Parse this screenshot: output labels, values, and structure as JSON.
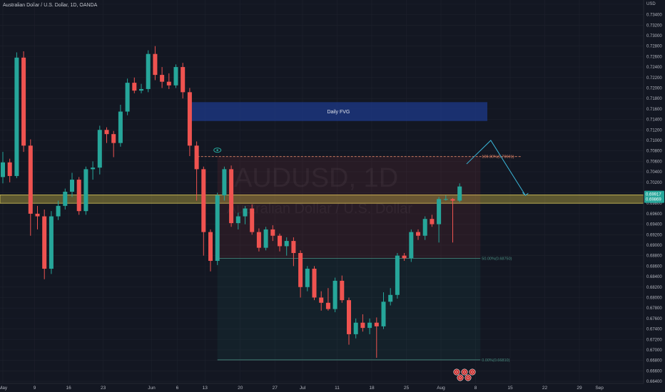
{
  "header": {
    "title": "Australian Dollar / U.S. Dollar, 1D, OANDA"
  },
  "watermark": {
    "symbol": "AUDUSD, 1D",
    "name": "Australian Dollar / U.S. Dollar"
  },
  "chart_data": {
    "type": "candlestick",
    "title": "Australian Dollar / U.S. Dollar, 1D, OANDA",
    "currency_label": "USD",
    "ylim": [
      0.6636,
      0.7368
    ],
    "price_scale_side": "right",
    "y_ticks": [
      "0.73600",
      "0.73400",
      "0.73200",
      "0.73000",
      "0.72800",
      "0.72600",
      "0.72400",
      "0.72200",
      "0.72000",
      "0.71800",
      "0.71600",
      "0.71400",
      "0.71200",
      "0.71000",
      "0.70800",
      "0.70600",
      "0.70400",
      "0.70200",
      "0.70000",
      "0.69800",
      "0.69600",
      "0.69400",
      "0.69200",
      "0.69000",
      "0.68800",
      "0.68600",
      "0.68400",
      "0.68200",
      "0.68000",
      "0.67800",
      "0.67600",
      "0.67400",
      "0.67200",
      "0.67000",
      "0.66800",
      "0.66600",
      "0.66400"
    ],
    "x_ticks": [
      {
        "label": "May",
        "index": 0
      },
      {
        "label": "9",
        "index": 4.6
      },
      {
        "label": "16",
        "index": 9.5
      },
      {
        "label": "23",
        "index": 14.5
      },
      {
        "label": "Jun",
        "index": 21.5
      },
      {
        "label": "6",
        "index": 25.2
      },
      {
        "label": "13",
        "index": 29.2
      },
      {
        "label": "20",
        "index": 34.3
      },
      {
        "label": "27",
        "index": 39.3
      },
      {
        "label": "Jul",
        "index": 43.3
      },
      {
        "label": "11",
        "index": 48.3
      },
      {
        "label": "18",
        "index": 53.3
      },
      {
        "label": "25",
        "index": 58.3
      },
      {
        "label": "Aug",
        "index": 63.3
      },
      {
        "label": "8",
        "index": 68.3
      },
      {
        "label": "15",
        "index": 73.3
      },
      {
        "label": "22",
        "index": 78.3
      },
      {
        "label": "29",
        "index": 83.3
      },
      {
        "label": "Sep",
        "index": 86.2
      }
    ],
    "current_price": "0.69917",
    "current_price_2": "0.69869",
    "candles": [
      {
        "o": 0.703,
        "h": 0.7078,
        "l": 0.7018,
        "c": 0.7058
      },
      {
        "o": 0.7058,
        "h": 0.7065,
        "l": 0.702,
        "c": 0.7032
      },
      {
        "o": 0.7032,
        "h": 0.7268,
        "l": 0.7028,
        "c": 0.7258
      },
      {
        "o": 0.7258,
        "h": 0.727,
        "l": 0.7078,
        "c": 0.709
      },
      {
        "o": 0.709,
        "h": 0.7102,
        "l": 0.6918,
        "c": 0.696
      },
      {
        "o": 0.696,
        "h": 0.6975,
        "l": 0.693,
        "c": 0.6955
      },
      {
        "o": 0.6955,
        "h": 0.6968,
        "l": 0.6835,
        "c": 0.6855
      },
      {
        "o": 0.6855,
        "h": 0.6965,
        "l": 0.6845,
        "c": 0.6955
      },
      {
        "o": 0.6955,
        "h": 0.6985,
        "l": 0.6948,
        "c": 0.6975
      },
      {
        "o": 0.6975,
        "h": 0.7008,
        "l": 0.6968,
        "c": 0.7002
      },
      {
        "o": 0.7002,
        "h": 0.7038,
        "l": 0.6992,
        "c": 0.7025
      },
      {
        "o": 0.7025,
        "h": 0.703,
        "l": 0.6958,
        "c": 0.6965
      },
      {
        "o": 0.6965,
        "h": 0.705,
        "l": 0.6958,
        "c": 0.7045
      },
      {
        "o": 0.7045,
        "h": 0.706,
        "l": 0.7025,
        "c": 0.7048
      },
      {
        "o": 0.7048,
        "h": 0.7128,
        "l": 0.7035,
        "c": 0.712
      },
      {
        "o": 0.712,
        "h": 0.7125,
        "l": 0.7095,
        "c": 0.7112
      },
      {
        "o": 0.7112,
        "h": 0.7118,
        "l": 0.7068,
        "c": 0.7095
      },
      {
        "o": 0.7095,
        "h": 0.7168,
        "l": 0.7088,
        "c": 0.7155
      },
      {
        "o": 0.7155,
        "h": 0.7218,
        "l": 0.7148,
        "c": 0.721
      },
      {
        "o": 0.721,
        "h": 0.722,
        "l": 0.719,
        "c": 0.7195
      },
      {
        "o": 0.7195,
        "h": 0.7208,
        "l": 0.719,
        "c": 0.7198
      },
      {
        "o": 0.7198,
        "h": 0.7272,
        "l": 0.7192,
        "c": 0.7265
      },
      {
        "o": 0.7265,
        "h": 0.728,
        "l": 0.7215,
        "c": 0.7225
      },
      {
        "o": 0.7225,
        "h": 0.724,
        "l": 0.72,
        "c": 0.7212
      },
      {
        "o": 0.7212,
        "h": 0.7228,
        "l": 0.7198,
        "c": 0.7205
      },
      {
        "o": 0.7205,
        "h": 0.7245,
        "l": 0.72,
        "c": 0.724
      },
      {
        "o": 0.724,
        "h": 0.7248,
        "l": 0.718,
        "c": 0.7192
      },
      {
        "o": 0.7192,
        "h": 0.72,
        "l": 0.707,
        "c": 0.709
      },
      {
        "o": 0.709,
        "h": 0.7098,
        "l": 0.6985,
        "c": 0.7045
      },
      {
        "o": 0.7045,
        "h": 0.705,
        "l": 0.688,
        "c": 0.6925
      },
      {
        "o": 0.6925,
        "h": 0.693,
        "l": 0.685,
        "c": 0.687
      },
      {
        "o": 0.687,
        "h": 0.7,
        "l": 0.6862,
        "c": 0.6995
      },
      {
        "o": 0.6995,
        "h": 0.705,
        "l": 0.6985,
        "c": 0.7045
      },
      {
        "o": 0.7045,
        "h": 0.7052,
        "l": 0.6935,
        "c": 0.6942
      },
      {
        "o": 0.6942,
        "h": 0.6962,
        "l": 0.693,
        "c": 0.6955
      },
      {
        "o": 0.6955,
        "h": 0.6975,
        "l": 0.694,
        "c": 0.697
      },
      {
        "o": 0.697,
        "h": 0.6978,
        "l": 0.692,
        "c": 0.6925
      },
      {
        "o": 0.6925,
        "h": 0.6932,
        "l": 0.6888,
        "c": 0.6895
      },
      {
        "o": 0.6895,
        "h": 0.6935,
        "l": 0.689,
        "c": 0.693
      },
      {
        "o": 0.693,
        "h": 0.6938,
        "l": 0.6908,
        "c": 0.6918
      },
      {
        "o": 0.6918,
        "h": 0.6922,
        "l": 0.6888,
        "c": 0.6898
      },
      {
        "o": 0.6898,
        "h": 0.6915,
        "l": 0.688,
        "c": 0.6908
      },
      {
        "o": 0.6908,
        "h": 0.6915,
        "l": 0.686,
        "c": 0.6885
      },
      {
        "o": 0.6885,
        "h": 0.689,
        "l": 0.68,
        "c": 0.682
      },
      {
        "o": 0.682,
        "h": 0.686,
        "l": 0.6812,
        "c": 0.6855
      },
      {
        "o": 0.6855,
        "h": 0.686,
        "l": 0.6795,
        "c": 0.68
      },
      {
        "o": 0.68,
        "h": 0.6812,
        "l": 0.6775,
        "c": 0.679
      },
      {
        "o": 0.679,
        "h": 0.6818,
        "l": 0.6775,
        "c": 0.6778
      },
      {
        "o": 0.6778,
        "h": 0.6838,
        "l": 0.6772,
        "c": 0.6832
      },
      {
        "o": 0.6832,
        "h": 0.6842,
        "l": 0.679,
        "c": 0.6795
      },
      {
        "o": 0.6795,
        "h": 0.68,
        "l": 0.671,
        "c": 0.673
      },
      {
        "o": 0.673,
        "h": 0.676,
        "l": 0.6722,
        "c": 0.6752
      },
      {
        "o": 0.6752,
        "h": 0.6768,
        "l": 0.6735,
        "c": 0.6742
      },
      {
        "o": 0.6742,
        "h": 0.676,
        "l": 0.673,
        "c": 0.6752
      },
      {
        "o": 0.6752,
        "h": 0.6762,
        "l": 0.6685,
        "c": 0.6745
      },
      {
        "o": 0.6745,
        "h": 0.681,
        "l": 0.674,
        "c": 0.6792
      },
      {
        "o": 0.6792,
        "h": 0.6818,
        "l": 0.6785,
        "c": 0.6805
      },
      {
        "o": 0.6805,
        "h": 0.6885,
        "l": 0.6798,
        "c": 0.688
      },
      {
        "o": 0.688,
        "h": 0.6885,
        "l": 0.687,
        "c": 0.6875
      },
      {
        "o": 0.6875,
        "h": 0.693,
        "l": 0.6868,
        "c": 0.6925
      },
      {
        "o": 0.6925,
        "h": 0.693,
        "l": 0.691,
        "c": 0.6918
      },
      {
        "o": 0.6918,
        "h": 0.6955,
        "l": 0.691,
        "c": 0.695
      },
      {
        "o": 0.695,
        "h": 0.6958,
        "l": 0.6935,
        "c": 0.694
      },
      {
        "o": 0.694,
        "h": 0.6992,
        "l": 0.6905,
        "c": 0.6988
      },
      {
        "o": 0.6988,
        "h": 0.6995,
        "l": 0.6985,
        "c": 0.6988
      },
      {
        "o": 0.6988,
        "h": 0.699,
        "l": 0.6905,
        "c": 0.6985
      },
      {
        "o": 0.6985,
        "h": 0.7018,
        "l": 0.6982,
        "c": 0.7012
      }
    ],
    "zones": [
      {
        "label": "Daily FVG",
        "index_from": 27,
        "index_to": 70,
        "price_from": 0.7137,
        "price_to": 0.7173,
        "color": "#1e3a8a"
      },
      {
        "label": "",
        "index_from": -3,
        "index_to": 100,
        "price_from": 0.698,
        "price_to": 0.6996,
        "color": "#b5a642"
      }
    ],
    "fibonacci": {
      "index_from": 31,
      "index_to": 69,
      "levels": [
        {
          "label": "100.00%(0.70691)",
          "value": 0.70691,
          "color": "#e8886a"
        },
        {
          "label": "50.00%(0.68750)",
          "value": 0.6875,
          "color": "#4a8f82"
        },
        {
          "label": "0.00%(0.66810)",
          "value": 0.6681,
          "color": "#4a8f82"
        }
      ]
    },
    "projection_path": [
      {
        "index": 67,
        "value": 0.7055
      },
      {
        "index": 70.5,
        "value": 0.71
      },
      {
        "index": 75.5,
        "value": 0.6995
      }
    ]
  },
  "colors": {
    "background": "#131722",
    "up": "#26a69a",
    "down": "#ef5350",
    "grid": "#1e222d",
    "axis_text": "#b2b5be",
    "projection": "#3ab6d8"
  },
  "badges": [
    "icon",
    "icon",
    "icon",
    "icon",
    "icon"
  ]
}
